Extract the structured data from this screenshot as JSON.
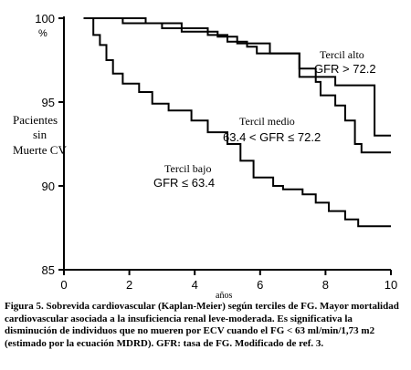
{
  "chart_data": {
    "type": "line",
    "ylabel": [
      "Pacientes",
      "sin",
      "Muerte CV"
    ],
    "y_unit_label": "%",
    "xlabel": "años",
    "xlim": [
      0,
      10
    ],
    "ylim": [
      85,
      100
    ],
    "x_ticks": [
      0,
      2,
      4,
      6,
      8,
      10
    ],
    "y_ticks": [
      85,
      90,
      95,
      100
    ],
    "grid": false,
    "series": [
      {
        "name": "Tercil alto",
        "annotation": "GFR > 72.2",
        "points": [
          [
            0.6,
            100
          ],
          [
            2.5,
            100
          ],
          [
            2.5,
            99.7
          ],
          [
            3.6,
            99.7
          ],
          [
            3.6,
            99.2
          ],
          [
            4.7,
            99.2
          ],
          [
            4.7,
            98.9
          ],
          [
            5.3,
            98.9
          ],
          [
            5.3,
            98.5
          ],
          [
            6.3,
            98.5
          ],
          [
            6.3,
            97.9
          ],
          [
            7.2,
            97.9
          ],
          [
            7.2,
            96.5
          ],
          [
            8.3,
            96.5
          ],
          [
            8.3,
            96.0
          ],
          [
            9.5,
            96.0
          ],
          [
            9.5,
            93.0
          ],
          [
            10,
            93.0
          ]
        ]
      },
      {
        "name": "Tercil medio",
        "annotation": "63.4 < GFR ≤ 72.2",
        "points": [
          [
            0.6,
            100
          ],
          [
            1.8,
            100
          ],
          [
            1.8,
            99.7
          ],
          [
            3.0,
            99.7
          ],
          [
            3.0,
            99.4
          ],
          [
            4.4,
            99.4
          ],
          [
            4.4,
            99.0
          ],
          [
            5.0,
            99.0
          ],
          [
            5.0,
            98.6
          ],
          [
            5.6,
            98.6
          ],
          [
            5.6,
            98.3
          ],
          [
            5.9,
            98.3
          ],
          [
            5.9,
            97.9
          ],
          [
            7.2,
            97.9
          ],
          [
            7.2,
            97.0
          ],
          [
            7.7,
            97.0
          ],
          [
            7.7,
            96.2
          ],
          [
            7.85,
            96.2
          ],
          [
            7.85,
            95.4
          ],
          [
            8.3,
            95.4
          ],
          [
            8.3,
            94.8
          ],
          [
            8.6,
            94.8
          ],
          [
            8.6,
            93.9
          ],
          [
            8.9,
            93.9
          ],
          [
            8.9,
            92.5
          ],
          [
            9.1,
            92.5
          ],
          [
            9.1,
            92.0
          ],
          [
            10,
            92.0
          ]
        ]
      },
      {
        "name": "Tercil bajo",
        "annotation": "GFR ≤ 63.4",
        "points": [
          [
            0.6,
            100
          ],
          [
            0.9,
            100
          ],
          [
            0.9,
            99.0
          ],
          [
            1.1,
            99.0
          ],
          [
            1.1,
            98.4
          ],
          [
            1.3,
            98.4
          ],
          [
            1.3,
            97.5
          ],
          [
            1.5,
            97.5
          ],
          [
            1.5,
            96.7
          ],
          [
            1.8,
            96.7
          ],
          [
            1.8,
            96.1
          ],
          [
            2.3,
            96.1
          ],
          [
            2.3,
            95.6
          ],
          [
            2.7,
            95.6
          ],
          [
            2.7,
            94.9
          ],
          [
            3.2,
            94.9
          ],
          [
            3.2,
            94.5
          ],
          [
            3.9,
            94.5
          ],
          [
            3.9,
            93.9
          ],
          [
            4.4,
            93.9
          ],
          [
            4.4,
            93.2
          ],
          [
            5.0,
            93.2
          ],
          [
            5.0,
            92.5
          ],
          [
            5.4,
            92.5
          ],
          [
            5.4,
            91.5
          ],
          [
            5.8,
            91.5
          ],
          [
            5.8,
            90.5
          ],
          [
            6.4,
            90.5
          ],
          [
            6.4,
            90.0
          ],
          [
            6.7,
            90.0
          ],
          [
            6.7,
            89.8
          ],
          [
            7.3,
            89.8
          ],
          [
            7.3,
            89.5
          ],
          [
            7.7,
            89.5
          ],
          [
            7.7,
            89.0
          ],
          [
            8.1,
            89.0
          ],
          [
            8.1,
            88.5
          ],
          [
            8.6,
            88.5
          ],
          [
            8.6,
            88.0
          ],
          [
            9.0,
            88.0
          ],
          [
            9.0,
            87.6
          ],
          [
            10,
            87.6
          ]
        ]
      }
    ]
  },
  "caption": "Figura 5. Sobrevida cardiovascular (Kaplan-Meier) según terciles de FG. Mayor mortalidad cardiovascular asociada a la insuficiencia renal leve-moderada. Es significativa la disminución de individuos que no mueren por ECV cuando el FG < 63 ml/min/1,73 m2 (estimado por la ecuación MDRD). GFR: tasa de FG. Modificado de ref. 3."
}
